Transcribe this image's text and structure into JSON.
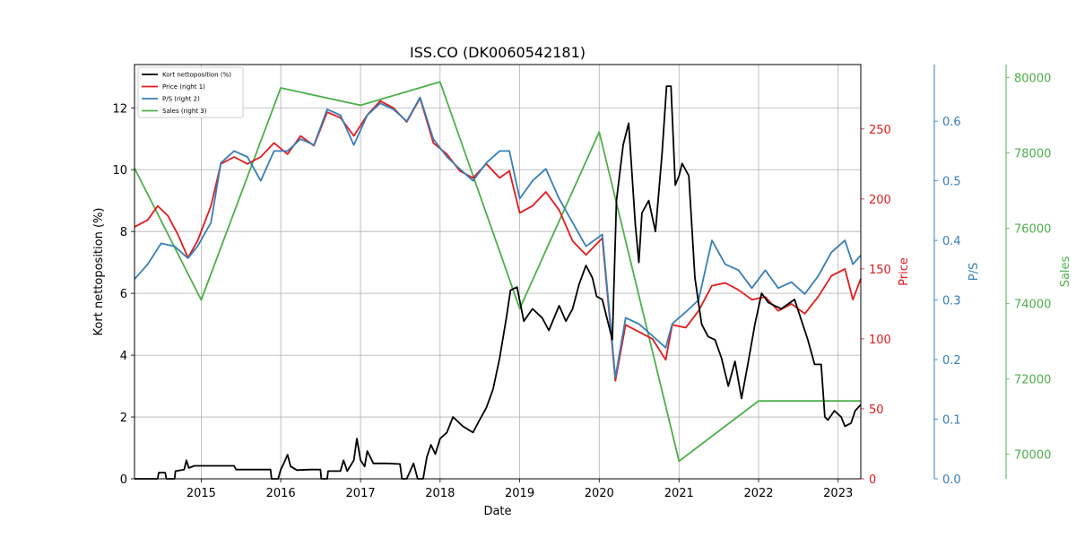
{
  "chart_data": {
    "type": "line",
    "title": "ISS.CO (DK0060542181)",
    "xlabel": "Date",
    "x_range": [
      "2014-03-01",
      "2023-04-15"
    ],
    "x_ticks": [
      "2015",
      "2016",
      "2017",
      "2018",
      "2019",
      "2020",
      "2021",
      "2022",
      "2023"
    ],
    "grid": true,
    "legend_position": "top-left",
    "axes": {
      "left": {
        "label": "Kort nettoposition (%)",
        "range": [
          0,
          13.4
        ],
        "ticks": [
          0,
          2,
          4,
          6,
          8,
          10,
          12
        ],
        "color": "#000000"
      },
      "right1": {
        "label": "Price",
        "range": [
          0,
          296
        ],
        "ticks": [
          0,
          50,
          100,
          150,
          200,
          250
        ],
        "color": "#e41a1c"
      },
      "right2": {
        "label": "P/S",
        "range": [
          0,
          0.695
        ],
        "ticks": [
          0.0,
          0.1,
          0.2,
          0.3,
          0.4,
          0.5,
          0.6
        ],
        "color": "#377eb8"
      },
      "right3": {
        "label": "Sales",
        "range": [
          69350,
          80350
        ],
        "ticks": [
          70000,
          72000,
          74000,
          76000,
          78000,
          80000
        ],
        "color": "#4daf4a"
      }
    },
    "series": [
      {
        "name": "Kort nettoposition (%)",
        "axis": "left",
        "color": "#000000",
        "points": [
          [
            "2014-03-01",
            0
          ],
          [
            "2014-06-15",
            0
          ],
          [
            "2014-06-20",
            0.2
          ],
          [
            "2014-07-20",
            0.2
          ],
          [
            "2014-07-25",
            0
          ],
          [
            "2014-09-01",
            0
          ],
          [
            "2014-09-05",
            0.25
          ],
          [
            "2014-10-15",
            0.3
          ],
          [
            "2014-10-25",
            0.6
          ],
          [
            "2014-11-05",
            0.35
          ],
          [
            "2014-12-01",
            0.42
          ],
          [
            "2015-06-01",
            0.42
          ],
          [
            "2015-06-10",
            0.3
          ],
          [
            "2015-09-01",
            0.3
          ],
          [
            "2015-11-15",
            0.3
          ],
          [
            "2015-11-20",
            0
          ],
          [
            "2015-12-20",
            0
          ],
          [
            "2016-01-01",
            0.3
          ],
          [
            "2016-01-15",
            0.5
          ],
          [
            "2016-02-01",
            0.78
          ],
          [
            "2016-02-15",
            0.4
          ],
          [
            "2016-03-15",
            0.28
          ],
          [
            "2016-05-15",
            0.3
          ],
          [
            "2016-07-01",
            0.3
          ],
          [
            "2016-07-05",
            0
          ],
          [
            "2016-08-01",
            0
          ],
          [
            "2016-08-05",
            0.25
          ],
          [
            "2016-10-01",
            0.25
          ],
          [
            "2016-10-15",
            0.6
          ],
          [
            "2016-11-01",
            0.25
          ],
          [
            "2016-12-01",
            0.6
          ],
          [
            "2016-12-15",
            1.3
          ],
          [
            "2017-01-01",
            0.6
          ],
          [
            "2017-01-20",
            0.4
          ],
          [
            "2017-02-01",
            0.9
          ],
          [
            "2017-03-01",
            0.5
          ],
          [
            "2017-05-01",
            0.5
          ],
          [
            "2017-07-01",
            0.48
          ],
          [
            "2017-07-10",
            0
          ],
          [
            "2017-08-01",
            0
          ],
          [
            "2017-09-01",
            0.5
          ],
          [
            "2017-09-20",
            0
          ],
          [
            "2017-10-15",
            0
          ],
          [
            "2017-11-01",
            0.7
          ],
          [
            "2017-11-20",
            1.1
          ],
          [
            "2017-12-10",
            0.8
          ],
          [
            "2018-01-01",
            1.3
          ],
          [
            "2018-02-01",
            1.5
          ],
          [
            "2018-03-01",
            2.0
          ],
          [
            "2018-04-15",
            1.7
          ],
          [
            "2018-06-01",
            1.5
          ],
          [
            "2018-07-01",
            1.9
          ],
          [
            "2018-08-01",
            2.3
          ],
          [
            "2018-09-01",
            2.9
          ],
          [
            "2018-10-01",
            3.9
          ],
          [
            "2018-11-01",
            5.2
          ],
          [
            "2018-11-20",
            6.1
          ],
          [
            "2018-12-20",
            6.2
          ],
          [
            "2019-01-20",
            5.1
          ],
          [
            "2019-03-01",
            5.5
          ],
          [
            "2019-04-15",
            5.2
          ],
          [
            "2019-05-15",
            4.8
          ],
          [
            "2019-07-01",
            5.6
          ],
          [
            "2019-08-01",
            5.1
          ],
          [
            "2019-09-01",
            5.5
          ],
          [
            "2019-10-01",
            6.3
          ],
          [
            "2019-11-01",
            6.9
          ],
          [
            "2019-12-01",
            6.5
          ],
          [
            "2019-12-20",
            5.9
          ],
          [
            "2020-01-15",
            5.8
          ],
          [
            "2020-03-01",
            4.5
          ],
          [
            "2020-03-20",
            9.0
          ],
          [
            "2020-04-20",
            10.8
          ],
          [
            "2020-05-15",
            11.5
          ],
          [
            "2020-06-15",
            8.2
          ],
          [
            "2020-07-01",
            7.0
          ],
          [
            "2020-07-15",
            8.6
          ],
          [
            "2020-08-15",
            9.0
          ],
          [
            "2020-09-15",
            8.0
          ],
          [
            "2020-10-15",
            10.5
          ],
          [
            "2020-11-05",
            12.7
          ],
          [
            "2020-11-25",
            12.7
          ],
          [
            "2020-12-15",
            9.5
          ],
          [
            "2021-01-01",
            9.8
          ],
          [
            "2021-01-15",
            10.2
          ],
          [
            "2021-02-15",
            9.8
          ],
          [
            "2021-03-15",
            6.5
          ],
          [
            "2021-04-15",
            5.0
          ],
          [
            "2021-05-15",
            4.6
          ],
          [
            "2021-06-15",
            4.5
          ],
          [
            "2021-07-15",
            3.9
          ],
          [
            "2021-08-15",
            3.0
          ],
          [
            "2021-09-15",
            3.8
          ],
          [
            "2021-10-15",
            2.6
          ],
          [
            "2021-11-15",
            3.8
          ],
          [
            "2021-12-15",
            5.0
          ],
          [
            "2022-01-15",
            6.0
          ],
          [
            "2022-02-15",
            5.7
          ],
          [
            "2022-04-15",
            5.5
          ],
          [
            "2022-06-15",
            5.8
          ],
          [
            "2022-08-15",
            4.5
          ],
          [
            "2022-09-15",
            3.7
          ],
          [
            "2022-10-15",
            3.7
          ],
          [
            "2022-11-01",
            2.0
          ],
          [
            "2022-11-15",
            1.9
          ],
          [
            "2022-12-15",
            2.2
          ],
          [
            "2023-01-15",
            2.0
          ],
          [
            "2023-02-01",
            1.7
          ],
          [
            "2023-03-01",
            1.8
          ],
          [
            "2023-03-20",
            2.2
          ],
          [
            "2023-04-15",
            2.4
          ]
        ]
      },
      {
        "name": "Price (right 1)",
        "axis": "right1",
        "color": "#e41a1c",
        "points": [
          [
            "2014-03-01",
            180
          ],
          [
            "2014-05-01",
            185
          ],
          [
            "2014-06-15",
            195
          ],
          [
            "2014-08-01",
            188
          ],
          [
            "2014-09-15",
            175
          ],
          [
            "2014-11-01",
            158
          ],
          [
            "2014-12-15",
            170
          ],
          [
            "2015-02-15",
            195
          ],
          [
            "2015-04-01",
            225
          ],
          [
            "2015-06-01",
            230
          ],
          [
            "2015-08-01",
            225
          ],
          [
            "2015-10-01",
            230
          ],
          [
            "2015-12-01",
            240
          ],
          [
            "2016-02-01",
            232
          ],
          [
            "2016-04-01",
            245
          ],
          [
            "2016-06-01",
            238
          ],
          [
            "2016-08-01",
            262
          ],
          [
            "2016-10-01",
            258
          ],
          [
            "2016-12-01",
            245
          ],
          [
            "2017-02-01",
            260
          ],
          [
            "2017-04-01",
            270
          ],
          [
            "2017-06-01",
            265
          ],
          [
            "2017-08-01",
            255
          ],
          [
            "2017-10-01",
            272
          ],
          [
            "2017-12-01",
            240
          ],
          [
            "2018-02-01",
            232
          ],
          [
            "2018-04-01",
            220
          ],
          [
            "2018-06-01",
            215
          ],
          [
            "2018-08-01",
            225
          ],
          [
            "2018-10-01",
            215
          ],
          [
            "2018-11-15",
            220
          ],
          [
            "2019-01-01",
            190
          ],
          [
            "2019-03-01",
            195
          ],
          [
            "2019-05-01",
            205
          ],
          [
            "2019-07-01",
            192
          ],
          [
            "2019-09-01",
            170
          ],
          [
            "2019-11-01",
            160
          ],
          [
            "2020-01-15",
            172
          ],
          [
            "2020-03-15",
            70
          ],
          [
            "2020-05-01",
            110
          ],
          [
            "2020-07-01",
            105
          ],
          [
            "2020-09-01",
            100
          ],
          [
            "2020-11-01",
            85
          ],
          [
            "2020-12-01",
            110
          ],
          [
            "2021-02-01",
            108
          ],
          [
            "2021-04-01",
            120
          ],
          [
            "2021-06-01",
            138
          ],
          [
            "2021-08-01",
            140
          ],
          [
            "2021-10-01",
            135
          ],
          [
            "2021-12-01",
            128
          ],
          [
            "2022-02-01",
            130
          ],
          [
            "2022-04-01",
            120
          ],
          [
            "2022-06-01",
            125
          ],
          [
            "2022-08-01",
            118
          ],
          [
            "2022-10-01",
            130
          ],
          [
            "2022-12-01",
            145
          ],
          [
            "2023-02-01",
            150
          ],
          [
            "2023-03-10",
            128
          ],
          [
            "2023-04-15",
            143
          ]
        ]
      },
      {
        "name": "P/S (right 2)",
        "axis": "right2",
        "color": "#377eb8",
        "points": [
          [
            "2014-03-01",
            0.335
          ],
          [
            "2014-05-01",
            0.36
          ],
          [
            "2014-07-01",
            0.395
          ],
          [
            "2014-09-01",
            0.39
          ],
          [
            "2014-11-01",
            0.37
          ],
          [
            "2014-12-15",
            0.39
          ],
          [
            "2015-02-15",
            0.43
          ],
          [
            "2015-04-01",
            0.53
          ],
          [
            "2015-06-01",
            0.55
          ],
          [
            "2015-08-01",
            0.54
          ],
          [
            "2015-10-01",
            0.5
          ],
          [
            "2015-12-01",
            0.55
          ],
          [
            "2016-02-01",
            0.55
          ],
          [
            "2016-04-01",
            0.57
          ],
          [
            "2016-06-01",
            0.56
          ],
          [
            "2016-08-01",
            0.62
          ],
          [
            "2016-10-01",
            0.61
          ],
          [
            "2016-12-01",
            0.56
          ],
          [
            "2017-02-01",
            0.61
          ],
          [
            "2017-04-01",
            0.63
          ],
          [
            "2017-06-01",
            0.62
          ],
          [
            "2017-08-01",
            0.6
          ],
          [
            "2017-10-01",
            0.64
          ],
          [
            "2017-12-01",
            0.57
          ],
          [
            "2018-02-01",
            0.54
          ],
          [
            "2018-04-01",
            0.52
          ],
          [
            "2018-06-01",
            0.5
          ],
          [
            "2018-08-01",
            0.53
          ],
          [
            "2018-10-01",
            0.55
          ],
          [
            "2018-11-15",
            0.55
          ],
          [
            "2019-01-01",
            0.47
          ],
          [
            "2019-03-01",
            0.5
          ],
          [
            "2019-05-01",
            0.52
          ],
          [
            "2019-07-01",
            0.47
          ],
          [
            "2019-09-01",
            0.43
          ],
          [
            "2019-11-01",
            0.39
          ],
          [
            "2020-01-15",
            0.41
          ],
          [
            "2020-03-15",
            0.17
          ],
          [
            "2020-05-01",
            0.27
          ],
          [
            "2020-07-01",
            0.26
          ],
          [
            "2020-09-01",
            0.24
          ],
          [
            "2020-11-01",
            0.22
          ],
          [
            "2020-12-01",
            0.26
          ],
          [
            "2021-02-01",
            0.28
          ],
          [
            "2021-04-01",
            0.3
          ],
          [
            "2021-06-01",
            0.4
          ],
          [
            "2021-08-01",
            0.36
          ],
          [
            "2021-10-01",
            0.35
          ],
          [
            "2021-12-01",
            0.32
          ],
          [
            "2022-02-01",
            0.35
          ],
          [
            "2022-04-01",
            0.32
          ],
          [
            "2022-06-01",
            0.33
          ],
          [
            "2022-08-01",
            0.31
          ],
          [
            "2022-10-01",
            0.34
          ],
          [
            "2022-12-01",
            0.38
          ],
          [
            "2023-02-01",
            0.4
          ],
          [
            "2023-03-10",
            0.36
          ],
          [
            "2023-04-15",
            0.375
          ]
        ]
      },
      {
        "name": "Sales (right 3)",
        "axis": "right3",
        "color": "#4daf4a",
        "points": [
          [
            "2014-03-01",
            77600
          ],
          [
            "2015-01-01",
            74100
          ],
          [
            "2016-01-01",
            79730
          ],
          [
            "2017-01-01",
            79270
          ],
          [
            "2018-01-01",
            79890
          ],
          [
            "2019-01-01",
            73870
          ],
          [
            "2020-01-01",
            78560
          ],
          [
            "2021-01-01",
            69820
          ],
          [
            "2022-01-01",
            71420
          ],
          [
            "2023-04-15",
            71420
          ]
        ]
      }
    ]
  }
}
